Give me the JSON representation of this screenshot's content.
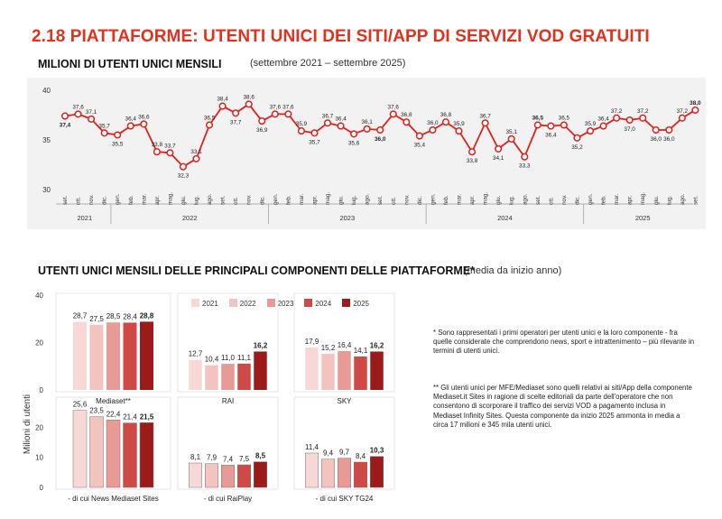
{
  "page": {
    "title": "2.18 PIATTAFORME: UTENTI UNICI DEI SITI/APP DI SERVIZI VOD GRATUITI"
  },
  "colors": {
    "accent": "#e0321e",
    "line": "#e0201a",
    "panel_bg": "#f2f2f2",
    "bars": [
      "#f7d8d6",
      "#f3c3c0",
      "#e89a96",
      "#cf4a46",
      "#9b1b1b"
    ]
  },
  "chart_data": [
    {
      "type": "line",
      "title": "MILIONI DI UTENTI UNICI MENSILI",
      "subtitle": "(settembre 2021 – settembre 2025)",
      "ylim": [
        30,
        40
      ],
      "yticks": [
        "30",
        "35",
        "40"
      ],
      "x": [
        "set.",
        "ott.",
        "nov.",
        "dic.",
        "gen.",
        "feb.",
        "mar.",
        "apr.",
        "mag.",
        "giu.",
        "lug.",
        "ago.",
        "set.",
        "ott.",
        "nov.",
        "dic.",
        "gen.",
        "feb.",
        "mar.",
        "apr.",
        "mag.",
        "giu.",
        "lug.",
        "ago.",
        "set.",
        "ott.",
        "nov.",
        "dic.",
        "gen.",
        "feb.",
        "mar.",
        "apr.",
        "mag.",
        "giu.",
        "lug.",
        "ago.",
        "set.",
        "ott.",
        "nov.",
        "dic.",
        "gen.",
        "feb.",
        "mar.",
        "apr.",
        "mag.",
        "giu.",
        "lug.",
        "ago.",
        "set."
      ],
      "years": [
        {
          "label": "2021",
          "start": 0,
          "end": 3
        },
        {
          "label": "2022",
          "start": 4,
          "end": 15
        },
        {
          "label": "2023",
          "start": 16,
          "end": 27
        },
        {
          "label": "2024",
          "start": 28,
          "end": 39
        },
        {
          "label": "2025",
          "start": 40,
          "end": 48
        }
      ],
      "values": [
        37.4,
        37.6,
        37.1,
        35.7,
        35.5,
        36.4,
        36.6,
        33.8,
        33.7,
        32.3,
        33.1,
        36.5,
        38.4,
        37.7,
        38.6,
        36.9,
        37.6,
        37.6,
        35.9,
        35.7,
        36.7,
        36.4,
        35.6,
        36.1,
        36.0,
        37.6,
        36.8,
        35.4,
        36.0,
        36.8,
        35.9,
        33.8,
        36.7,
        34.1,
        35.1,
        33.3,
        36.5,
        36.4,
        36.5,
        35.2,
        35.9,
        36.4,
        37.2,
        37.0,
        37.2,
        36.0,
        36.0,
        37.2,
        38.0
      ],
      "labels": [
        "37,4",
        "37,6",
        "37,1",
        "35,7",
        "35,5",
        "36,4",
        "36,6",
        "33,8",
        "33,7",
        "32,3",
        "33,1",
        "36,5",
        "38,4",
        "37,7",
        "38,6",
        "36,9",
        "37,6",
        "37,6",
        "35,9",
        "35,7",
        "36,7",
        "36,4",
        "35,6",
        "36,1",
        "36,0",
        "37,6",
        "36,8",
        "35,4",
        "36,0",
        "36,8",
        "35,9",
        "33,8",
        "36,7",
        "34,1",
        "35,1",
        "33,3",
        "36,5",
        "36,4",
        "36,5",
        "35,2",
        "35,9",
        "36,4",
        "37,2",
        "37,0",
        "37,2",
        "36,0",
        "36,0",
        "37,2",
        "38,0"
      ],
      "bold_labels": [
        "37,4",
        "36,0",
        "36,5",
        "38,0"
      ]
    },
    {
      "type": "bar",
      "title": "UTENTI UNICI MENSILI DELLE PRINCIPALI COMPONENTI DELLE PIATTAFORME*",
      "subtitle": "(media da inizio anno)",
      "ylabel": "Milioni di utenti",
      "legend": [
        "2021",
        "2022",
        "2023",
        "2024",
        "2025"
      ],
      "top_panel": {
        "ylim": [
          0,
          40
        ],
        "yticks": [
          "0",
          "20",
          "40"
        ],
        "groups": [
          {
            "name": "Mediaset**",
            "values": [
              28.7,
              27.5,
              28.5,
              28.4,
              28.8
            ],
            "labels": [
              "28,7",
              "27,5",
              "28,5",
              "28,4",
              "28,8"
            ]
          },
          {
            "name": "RAI",
            "values": [
              12.7,
              10.4,
              11.0,
              11.1,
              16.2
            ],
            "labels": [
              "12,7",
              "10,4",
              "11,0",
              "11,1",
              "16,2"
            ]
          },
          {
            "name": "SKY",
            "values": [
              17.9,
              15.2,
              16.4,
              14.1,
              16.2
            ],
            "labels": [
              "17,9",
              "15,2",
              "16,4",
              "14,1",
              "16,2"
            ]
          }
        ]
      },
      "bottom_panel": {
        "ylim": [
          0,
          30
        ],
        "yticks": [
          "0",
          "10",
          "20"
        ],
        "groups": [
          {
            "name": "- di cui News Mediaset Sites",
            "values": [
              25.6,
              23.5,
              22.4,
              21.4,
              21.5
            ],
            "labels": [
              "25,6",
              "23,5",
              "22,4",
              "21,4",
              "21,5"
            ]
          },
          {
            "name": "- di cui RaiPlay",
            "values": [
              8.1,
              7.9,
              7.4,
              7.5,
              8.5
            ],
            "labels": [
              "8,1",
              "7,9",
              "7,4",
              "7,5",
              "8,5"
            ]
          },
          {
            "name": "- di cui SKY TG24",
            "values": [
              11.4,
              9.4,
              9.7,
              8.4,
              10.3
            ],
            "labels": [
              "11,4",
              "9,4",
              "9,7",
              "8,4",
              "10,3"
            ]
          }
        ]
      }
    }
  ],
  "notes": {
    "note1": "* Sono rappresentati i primi operatori per utenti unici e la loro componente - fra quelle considerate che comprendono news, sport e intrattenimento – più rilevante in termini di utenti unici.",
    "note2": "** Gli utenti unici per MFE/Mediaset sono quelli relativi ai siti/App della componente Mediaset.it Sites in ragione di scelte editoriali da parte dell'operatore che non consentono di scorporare il traffico dei servizi VOD a pagamento inclusa in Mediaset Infinity Sites. Questa componente da inizio 2025 ammonta in media a circa 17 milioni e 345 mila utenti unici."
  }
}
